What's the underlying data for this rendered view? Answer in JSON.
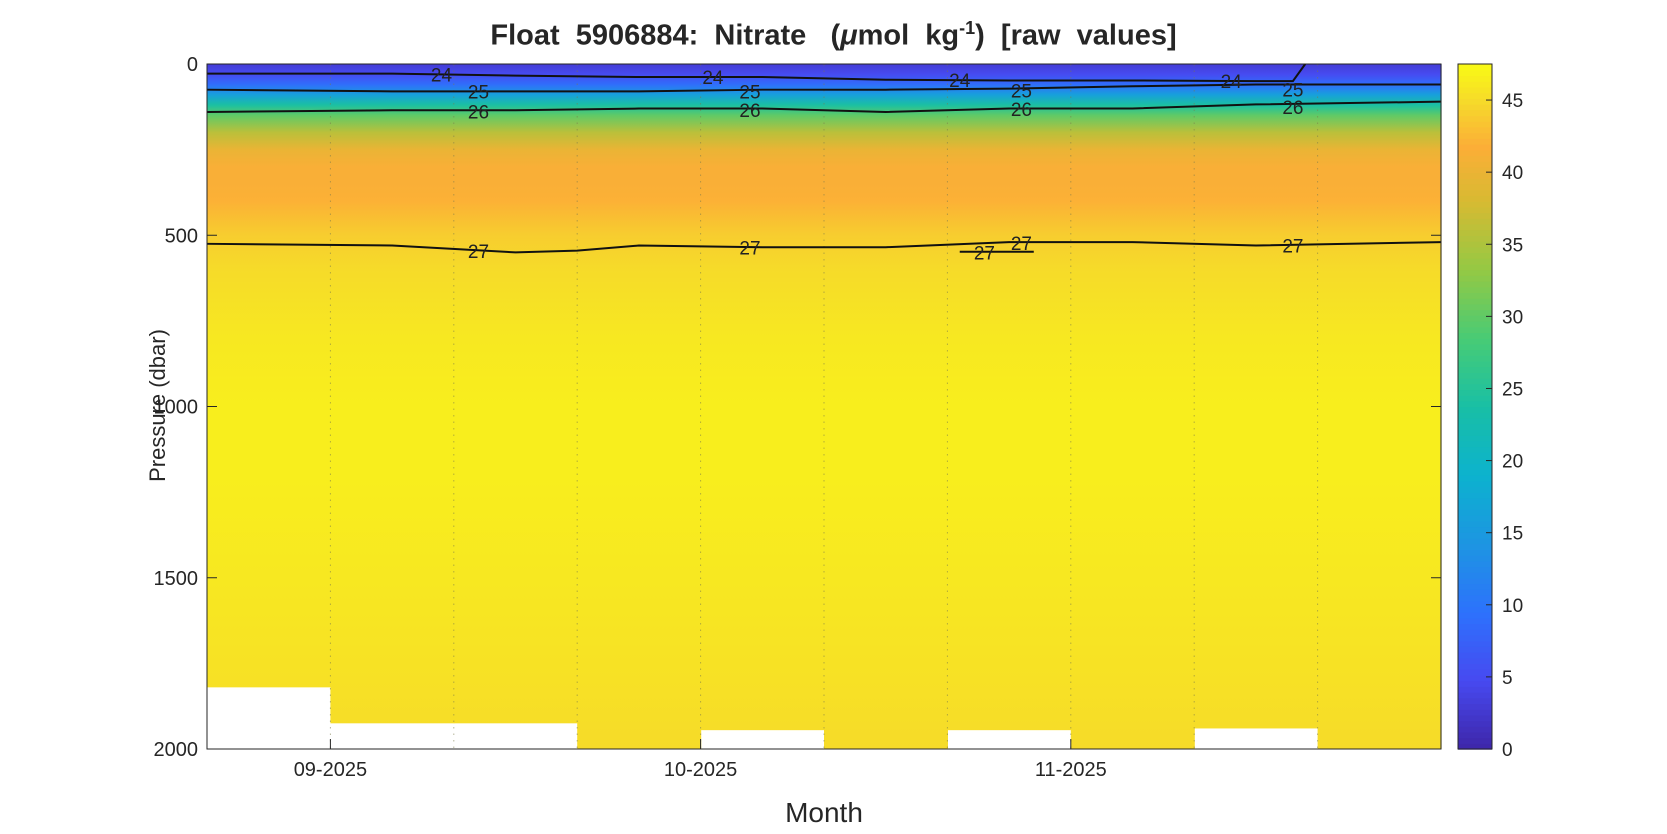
{
  "chart_data": {
    "type": "heatmap",
    "title": {
      "prefix": "Float  5906884:  Nitrate   (",
      "mu": "μ",
      "unit_a": "mol  kg",
      "exponent": "-1",
      "suffix": ")  [raw  values]"
    },
    "xlabel": "Month",
    "ylabel": "Pressure (dbar)",
    "x_ticks": [
      "09-2025",
      "10-2025",
      "11-2025"
    ],
    "y_ticks": [
      0,
      500,
      1000,
      1500,
      2000
    ],
    "ylim": [
      0,
      2000
    ],
    "y_reversed": true,
    "colorbar": {
      "range": [
        0,
        47.5
      ],
      "ticks": [
        0,
        5,
        10,
        15,
        20,
        25,
        30,
        35,
        40,
        45
      ],
      "colormap": "parula"
    },
    "profiles": [
      {
        "x": 0,
        "max_pressure": 1820
      },
      {
        "x": 1,
        "max_pressure": 1925
      },
      {
        "x": 2,
        "max_pressure": 1925
      },
      {
        "x": 3,
        "max_pressure": 2000
      },
      {
        "x": 4,
        "max_pressure": 1945
      },
      {
        "x": 5,
        "max_pressure": 2000
      },
      {
        "x": 6,
        "max_pressure": 1945
      },
      {
        "x": 7,
        "max_pressure": 2000
      },
      {
        "x": 8,
        "max_pressure": 1940
      },
      {
        "x": 9,
        "max_pressure": 2000
      }
    ],
    "tick_positions_profile_index": [
      1,
      4,
      7
    ],
    "nitrate_profile": {
      "pressure": [
        0,
        30,
        60,
        90,
        120,
        150,
        200,
        250,
        300,
        350,
        400,
        450,
        500,
        600,
        800,
        1000,
        1200,
        1500,
        1800,
        2000
      ],
      "nitrate": [
        3,
        5,
        9,
        16,
        24,
        30,
        36,
        40,
        41.5,
        41.5,
        42,
        43,
        44,
        45,
        46,
        46.5,
        46.5,
        46,
        45.5,
        45
      ]
    },
    "contour_labels": [
      "24",
      "25",
      "26",
      "27"
    ],
    "contours": [
      {
        "level": "24",
        "x": [
          0,
          1,
          2,
          3,
          4,
          5,
          6,
          7,
          8,
          8.3,
          8.4
        ],
        "p": [
          28,
          28,
          34,
          38,
          38,
          46,
          48,
          48,
          50,
          50,
          0
        ]
      },
      {
        "level": "25",
        "x": [
          0,
          1,
          2,
          3,
          4,
          5,
          6,
          7,
          8,
          9
        ],
        "p": [
          75,
          80,
          80,
          80,
          75,
          75,
          72,
          65,
          60,
          60
        ]
      },
      {
        "level": "26",
        "x": [
          0,
          1,
          2,
          3,
          4,
          5,
          6,
          7,
          8,
          9
        ],
        "p": [
          140,
          135,
          135,
          130,
          130,
          140,
          130,
          130,
          118,
          110
        ]
      },
      {
        "level": "27",
        "x": [
          0,
          1,
          2,
          2.5,
          3,
          4,
          5,
          6,
          7,
          8,
          9
        ],
        "p": [
          525,
          530,
          550,
          545,
          530,
          535,
          535,
          520,
          520,
          530,
          520
        ]
      },
      {
        "level": "27",
        "x": [
          5.6,
          6.2
        ],
        "p": [
          548,
          548
        ]
      }
    ],
    "contour_label_positions": [
      {
        "text": "24",
        "x": 1.4,
        "p": 30
      },
      {
        "text": "25",
        "x": 1.7,
        "p": 80
      },
      {
        "text": "26",
        "x": 1.7,
        "p": 138
      },
      {
        "text": "27",
        "x": 1.7,
        "p": 546
      },
      {
        "text": "24",
        "x": 3.6,
        "p": 38
      },
      {
        "text": "25",
        "x": 3.9,
        "p": 80
      },
      {
        "text": "26",
        "x": 3.9,
        "p": 135
      },
      {
        "text": "27",
        "x": 3.9,
        "p": 536
      },
      {
        "text": "24",
        "x": 5.6,
        "p": 47
      },
      {
        "text": "25",
        "x": 6.1,
        "p": 78
      },
      {
        "text": "26",
        "x": 6.1,
        "p": 132
      },
      {
        "text": "27",
        "x": 6.1,
        "p": 523
      },
      {
        "text": "27",
        "x": 5.8,
        "p": 550
      },
      {
        "text": "24",
        "x": 7.8,
        "p": 50
      },
      {
        "text": "25",
        "x": 8.3,
        "p": 75
      },
      {
        "text": "26",
        "x": 8.3,
        "p": 125
      },
      {
        "text": "27",
        "x": 8.3,
        "p": 530
      }
    ]
  }
}
